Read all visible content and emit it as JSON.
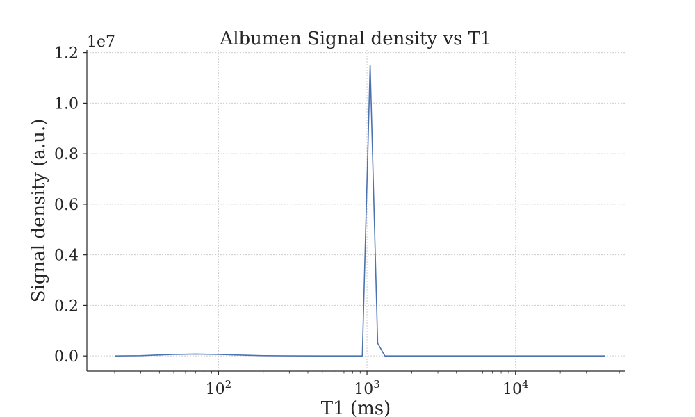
{
  "chart_data": {
    "type": "line",
    "title": "Albumen Signal density vs T1",
    "xlabel": "T1 (ms)",
    "ylabel": "Signal density (a.u.)",
    "y_offset_label": "1e7",
    "xscale": "log",
    "xlim": [
      13,
      55000
    ],
    "ylim": [
      -0.06,
      1.21
    ],
    "grid": true,
    "x_ticks": [
      {
        "value": 100,
        "base": "10",
        "exp": "2"
      },
      {
        "value": 1000,
        "base": "10",
        "exp": "3"
      },
      {
        "value": 10000,
        "base": "10",
        "exp": "4"
      }
    ],
    "y_ticks": [
      {
        "value": 0.0,
        "label": "0.0"
      },
      {
        "value": 0.2,
        "label": "0.2"
      },
      {
        "value": 0.4,
        "label": "0.4"
      },
      {
        "value": 0.6,
        "label": "0.6"
      },
      {
        "value": 0.8,
        "label": "0.8"
      },
      {
        "value": 1.0,
        "label": "1.0"
      },
      {
        "value": 1.2,
        "label": "1.2"
      }
    ],
    "series": [
      {
        "color": "#4c72b0",
        "x": [
          20,
          30,
          40,
          50,
          70,
          100,
          150,
          200,
          300,
          500,
          700,
          930,
          1050,
          1180,
          1320,
          1500,
          2000,
          5000,
          10000,
          20000,
          40000
        ],
        "y": [
          0.0,
          0.001,
          0.004,
          0.006,
          0.0075,
          0.006,
          0.003,
          0.001,
          0.0002,
          0.0,
          0.0,
          0.0,
          1.15,
          0.05,
          0.0,
          0.0,
          0.0,
          0.0,
          0.0,
          0.0,
          0.0
        ]
      }
    ]
  }
}
